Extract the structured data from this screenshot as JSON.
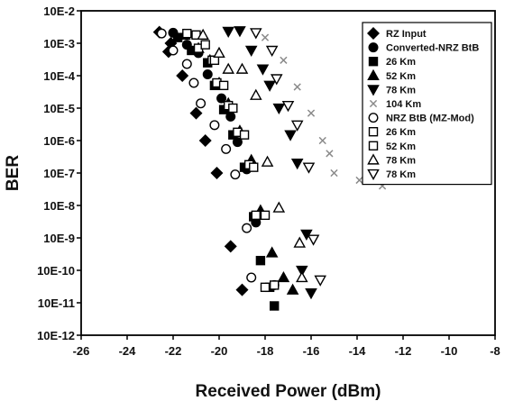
{
  "chart_data": {
    "type": "scatter",
    "title": "",
    "xlabel": "Received Power (dBm)",
    "ylabel": "BER",
    "xlim": [
      -26,
      -8
    ],
    "x_ticks": [
      -26,
      -24,
      -22,
      -20,
      -18,
      -16,
      -14,
      -12,
      -10,
      -8
    ],
    "y_scale": "log",
    "ylim_exponent": [
      -12,
      -2
    ],
    "y_ticks": [
      {
        "exp": -2,
        "label": "10E-2"
      },
      {
        "exp": -3,
        "label": "10E-3"
      },
      {
        "exp": -4,
        "label": "10E-4"
      },
      {
        "exp": -5,
        "label": "10E-5"
      },
      {
        "exp": -6,
        "label": "10E-6"
      },
      {
        "exp": -7,
        "label": "10E-7"
      },
      {
        "exp": -8,
        "label": "10E-8"
      },
      {
        "exp": -9,
        "label": "10E-9"
      },
      {
        "exp": -10,
        "label": "10E-10"
      },
      {
        "exp": -11,
        "label": "10E-11"
      },
      {
        "exp": -12,
        "label": "10E-12"
      }
    ],
    "legend_position": "top-right",
    "series": [
      {
        "name": "RZ Input",
        "marker": "diamond",
        "filled": true,
        "color": "#000000",
        "points": [
          [
            -22.6,
            0.0022
          ],
          [
            -22.1,
            0.001
          ],
          [
            -22.2,
            0.00055
          ],
          [
            -21.6,
            0.0001
          ],
          [
            -21.0,
            7e-06
          ],
          [
            -20.6,
            1e-06
          ],
          [
            -20.1,
            1e-07
          ],
          [
            -19.5,
            5.5e-10
          ],
          [
            -19.0,
            2.5e-11
          ]
        ]
      },
      {
        "name": "Converted-NRZ BtB",
        "marker": "circle",
        "filled": true,
        "color": "#000000",
        "points": [
          [
            -22.0,
            0.0021
          ],
          [
            -21.4,
            0.0009
          ],
          [
            -20.9,
            0.0005
          ],
          [
            -20.5,
            0.00011
          ],
          [
            -19.9,
            2e-05
          ],
          [
            -19.5,
            5.5e-06
          ],
          [
            -19.2,
            9e-07
          ],
          [
            -18.8,
            1.3e-07
          ],
          [
            -18.4,
            3e-09
          ],
          [
            -17.6,
            3.5e-11
          ]
        ]
      },
      {
        "name": "26 Km",
        "marker": "square",
        "filled": true,
        "color": "#000000",
        "points": [
          [
            -21.8,
            0.0015
          ],
          [
            -21.2,
            0.0006
          ],
          [
            -20.5,
            0.00025
          ],
          [
            -20.2,
            5e-05
          ],
          [
            -19.8,
            9e-06
          ],
          [
            -19.4,
            1.5e-06
          ],
          [
            -18.9,
            1.5e-07
          ],
          [
            -18.5,
            4.5e-09
          ],
          [
            -18.2,
            2e-10
          ],
          [
            -17.8,
            3e-11
          ],
          [
            -17.6,
            8e-12
          ]
        ]
      },
      {
        "name": "52 Km",
        "marker": "triangle-up",
        "filled": true,
        "color": "#000000",
        "points": [
          [
            -21.5,
            0.0018
          ],
          [
            -20.9,
            0.0007
          ],
          [
            -20.4,
            0.0003
          ],
          [
            -20.0,
            6e-05
          ],
          [
            -19.6,
            1.4e-05
          ],
          [
            -19.1,
            2e-06
          ],
          [
            -18.6,
            2.5e-07
          ],
          [
            -18.2,
            7e-09
          ],
          [
            -17.7,
            3.5e-10
          ],
          [
            -17.2,
            6e-11
          ],
          [
            -16.8,
            2.5e-11
          ]
        ]
      },
      {
        "name": "78 Km",
        "marker": "triangle-down",
        "filled": true,
        "color": "#000000",
        "points": [
          [
            -19.6,
            0.0023
          ],
          [
            -19.1,
            0.0024
          ],
          [
            -18.6,
            0.0006
          ],
          [
            -18.1,
            0.00016
          ],
          [
            -17.8,
            5e-05
          ],
          [
            -17.4,
            1e-05
          ],
          [
            -16.9,
            1.5e-06
          ],
          [
            -16.6,
            2e-07
          ],
          [
            -16.2,
            1.3e-09
          ],
          [
            -16.4,
            1e-10
          ],
          [
            -16.0,
            2e-11
          ]
        ]
      },
      {
        "name": "104 Km",
        "marker": "x",
        "filled": false,
        "color": "#8a8a8a",
        "points": [
          [
            -18.0,
            0.0015
          ],
          [
            -17.2,
            0.0003
          ],
          [
            -16.6,
            4.5e-05
          ],
          [
            -16.0,
            7e-06
          ],
          [
            -15.5,
            1e-06
          ],
          [
            -15.2,
            4e-07
          ],
          [
            -15.0,
            1e-07
          ],
          [
            -13.9,
            6e-08
          ],
          [
            -12.9,
            4e-08
          ]
        ]
      },
      {
        "name": "NRZ BtB (MZ-Mod)",
        "marker": "circle",
        "filled": false,
        "color": "#000000",
        "points": [
          [
            -22.5,
            0.002
          ],
          [
            -22.0,
            0.0006
          ],
          [
            -21.4,
            0.00023
          ],
          [
            -21.1,
            6e-05
          ],
          [
            -20.8,
            1.4e-05
          ],
          [
            -20.2,
            3e-06
          ],
          [
            -19.7,
            5.5e-07
          ],
          [
            -19.3,
            9e-08
          ],
          [
            -18.8,
            2e-09
          ],
          [
            -18.6,
            6e-11
          ]
        ]
      },
      {
        "name": "26 Km",
        "marker": "square",
        "filled": false,
        "color": "#000000",
        "points": [
          [
            -21.4,
            0.002
          ],
          [
            -20.9,
            0.0007
          ],
          [
            -20.3,
            0.0003
          ],
          [
            -20.1,
            6e-05
          ],
          [
            -19.6,
            1.2e-05
          ],
          [
            -19.2,
            1.8e-06
          ],
          [
            -18.7,
            1.8e-07
          ],
          [
            -18.4,
            5e-09
          ],
          [
            -18.0,
            3e-11
          ]
        ]
      },
      {
        "name": "52 Km",
        "marker": "square",
        "filled": false,
        "color": "#000000",
        "points": [
          [
            -21.0,
            0.0018
          ],
          [
            -20.6,
            0.0009
          ],
          [
            -20.2,
            0.0003
          ],
          [
            -19.8,
            5e-05
          ],
          [
            -19.4,
            1e-05
          ],
          [
            -18.9,
            1.5e-06
          ],
          [
            -18.5,
            1.5e-07
          ],
          [
            -18.0,
            5e-09
          ],
          [
            -17.6,
            3.5e-11
          ]
        ]
      },
      {
        "name": "78 Km",
        "marker": "triangle-up",
        "filled": false,
        "color": "#000000",
        "points": [
          [
            -20.7,
            0.0018
          ],
          [
            -20.0,
            0.0005
          ],
          [
            -19.6,
            0.00016
          ],
          [
            -19.0,
            0.00016
          ],
          [
            -18.4,
            2.5e-05
          ],
          [
            -17.9,
            2.2e-07
          ],
          [
            -17.4,
            8.5e-09
          ],
          [
            -16.5,
            7e-10
          ],
          [
            -16.4,
            6e-11
          ]
        ]
      },
      {
        "name": "78 Km",
        "marker": "triangle-down",
        "filled": false,
        "color": "#000000",
        "points": [
          [
            -18.4,
            0.0021
          ],
          [
            -17.7,
            0.0006
          ],
          [
            -17.5,
            8e-05
          ],
          [
            -17.0,
            1.2e-05
          ],
          [
            -16.6,
            3e-06
          ],
          [
            -16.1,
            1.5e-07
          ],
          [
            -15.9,
            9e-10
          ],
          [
            -15.6,
            5e-11
          ]
        ]
      }
    ]
  }
}
